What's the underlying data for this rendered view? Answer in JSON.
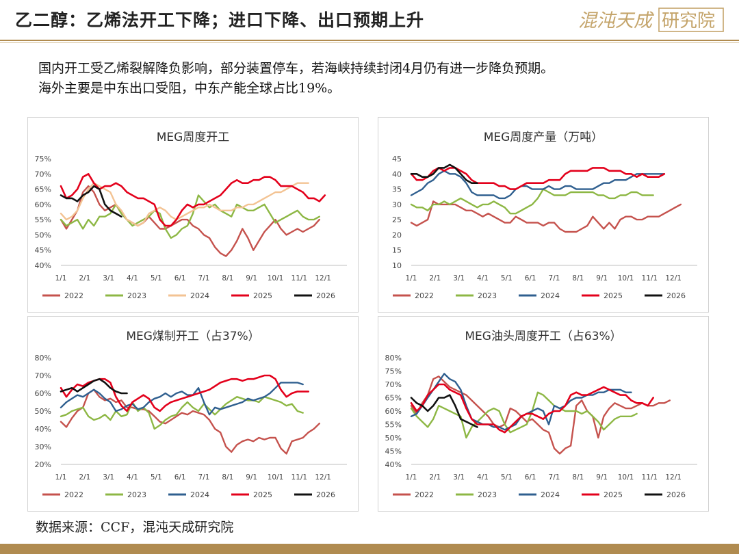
{
  "header": {
    "title": "乙二醇：乙烯法开工下降；进口下降、出口预期上升",
    "logo_text": "混沌天成研究院",
    "logo_part1": "混沌天成",
    "logo_part2": "研究院"
  },
  "intro": {
    "line1": "国内开工受乙烯裂解降负影响，部分装置停车，若海峡持续封闭4月仍有进一步降负预期。",
    "line2": "海外主要是中东出口受阻，中东产能全球占比19%。"
  },
  "source": "数据来源：CCF，混沌天成研究院",
  "colors": {
    "accent": "#b08b50",
    "2022": "#c5524d",
    "2023": "#8db744",
    "2024_peach": "#f3c393",
    "2024_blue": "#2f5f8f",
    "2025": "#e3001b",
    "2026": "#111111"
  },
  "chart_data": [
    {
      "type": "line",
      "title": "MEG周度开工",
      "ylim": [
        40,
        75
      ],
      "yticks": [
        40,
        45,
        50,
        55,
        60,
        65,
        70,
        75
      ],
      "yfmt": "%",
      "x_labels": [
        "1/1",
        "2/1",
        "3/1",
        "4/1",
        "5/1",
        "6/1",
        "7/1",
        "8/1",
        "9/1",
        "10/1",
        "11/1",
        "12/1"
      ],
      "series": [
        {
          "name": "2022",
          "color": "#c5524d",
          "values": [
            55,
            52,
            55,
            58,
            64,
            66,
            64,
            60,
            58,
            59,
            60,
            57,
            55,
            54,
            53,
            54,
            56,
            54,
            52,
            52,
            53,
            54,
            55,
            55,
            53,
            52,
            50,
            49,
            46,
            44,
            43,
            45,
            48,
            52,
            49,
            45,
            48,
            51,
            53,
            55,
            52,
            50,
            51,
            52,
            51,
            52,
            53,
            55
          ]
        },
        {
          "name": "2023",
          "color": "#8db744",
          "values": [
            55,
            53,
            54,
            55,
            52,
            55,
            53,
            56,
            56,
            57,
            60,
            57,
            55,
            53,
            54,
            55,
            56,
            58,
            57,
            52,
            49,
            50,
            52,
            53,
            57,
            63,
            61,
            59,
            60,
            58,
            57,
            56,
            60,
            59,
            58,
            58,
            59,
            60,
            57,
            54,
            55,
            56,
            57,
            58,
            56,
            55,
            55,
            56
          ]
        },
        {
          "name": "2024",
          "color": "#f3c393",
          "values": [
            57,
            55,
            56,
            58,
            62,
            65,
            67,
            66,
            65,
            64,
            60,
            58,
            55,
            54,
            53,
            54,
            57,
            58,
            59,
            58,
            56,
            55,
            56,
            57,
            58,
            59,
            59,
            60,
            59,
            58,
            58,
            58,
            59,
            59,
            60,
            60,
            61,
            62,
            63,
            64,
            64,
            65,
            66,
            67,
            67,
            67
          ]
        },
        {
          "name": "2025",
          "color": "#e3001b",
          "values": [
            66,
            62,
            63,
            65,
            69,
            70,
            67,
            65,
            66,
            66,
            67,
            66,
            64,
            63,
            62,
            62,
            61,
            60,
            55,
            53,
            53,
            55,
            58,
            60,
            59,
            60,
            60,
            61,
            62,
            63,
            65,
            67,
            68,
            67,
            67,
            68,
            68,
            69,
            69,
            68,
            66,
            66,
            66,
            65,
            64,
            62,
            62,
            61,
            63
          ]
        },
        {
          "name": "2026",
          "color": "#111111",
          "values": [
            63,
            62,
            62,
            61,
            63,
            64,
            66,
            65,
            60,
            58,
            57,
            56
          ]
        }
      ]
    },
    {
      "type": "line",
      "title": "MEG周度产量（万吨）",
      "ylim": [
        10,
        45
      ],
      "yticks": [
        10,
        15,
        20,
        25,
        30,
        35,
        40,
        45
      ],
      "yfmt": "",
      "x_labels": [
        "1/1",
        "2/1",
        "3/1",
        "4/1",
        "5/1",
        "6/1",
        "7/1",
        "8/1",
        "9/1",
        "10/1",
        "11/1",
        "12/1"
      ],
      "series": [
        {
          "name": "2022",
          "color": "#c5524d",
          "values": [
            24,
            23,
            24,
            25,
            31,
            30,
            30,
            30,
            30,
            29,
            28,
            28,
            27,
            26,
            27,
            26,
            25,
            24,
            24,
            26,
            25,
            24,
            24,
            24,
            23,
            24,
            24,
            22,
            21,
            21,
            21,
            22,
            23,
            26,
            24,
            22,
            24,
            22,
            25,
            26,
            26,
            25,
            25,
            26,
            26,
            26,
            27,
            28,
            29,
            30
          ]
        },
        {
          "name": "2023",
          "color": "#8db744",
          "values": [
            30,
            29,
            29,
            28,
            30,
            30,
            31,
            30,
            31,
            32,
            31,
            30,
            29,
            30,
            30,
            31,
            30,
            29,
            27,
            27,
            28,
            29,
            30,
            32,
            35,
            34,
            33,
            33,
            33,
            34,
            34,
            34,
            34,
            34,
            33,
            33,
            32,
            32,
            33,
            33,
            34,
            34,
            33,
            33,
            33
          ]
        },
        {
          "name": "2024",
          "color": "#2f5f8f",
          "values": [
            33,
            34,
            35,
            37,
            38,
            40,
            41,
            40,
            40,
            39,
            37,
            34,
            33,
            33,
            33,
            33,
            32,
            32,
            33,
            35,
            36,
            36,
            35,
            35,
            35,
            36,
            35,
            35,
            36,
            36,
            35,
            35,
            35,
            35,
            36,
            37,
            37,
            38,
            38,
            38,
            39,
            40,
            40,
            40,
            40,
            40,
            40
          ]
        },
        {
          "name": "2025",
          "color": "#e3001b",
          "values": [
            40,
            38,
            38,
            39,
            41,
            42,
            41,
            42,
            42,
            41,
            40,
            38,
            37,
            37,
            37,
            37,
            36,
            36,
            35,
            35,
            36,
            37,
            37,
            37,
            37,
            38,
            38,
            38,
            40,
            41,
            41,
            41,
            41,
            42,
            42,
            42,
            41,
            41,
            41,
            40,
            40,
            39,
            40,
            39,
            39,
            39,
            40
          ]
        },
        {
          "name": "2026",
          "color": "#111111",
          "values": [
            40,
            40,
            39,
            39,
            40,
            42,
            42,
            43,
            42,
            40,
            38,
            37,
            37
          ]
        }
      ]
    },
    {
      "type": "line",
      "title": "MEG煤制开工（占37%）",
      "ylim": [
        20,
        80
      ],
      "yticks": [
        20,
        30,
        40,
        50,
        60,
        70,
        80
      ],
      "yfmt": "%",
      "x_labels": [
        "1/1",
        "2/1",
        "3/1",
        "4/1",
        "5/1",
        "6/1",
        "7/1",
        "8/1",
        "9/1",
        "10/1",
        "11/1",
        "12/1"
      ],
      "series": [
        {
          "name": "2022",
          "color": "#c5524d",
          "values": [
            44,
            41,
            46,
            50,
            52,
            60,
            62,
            58,
            56,
            57,
            55,
            56,
            52,
            52,
            51,
            51,
            50,
            47,
            44,
            43,
            45,
            47,
            49,
            48,
            50,
            49,
            48,
            45,
            40,
            38,
            30,
            27,
            31,
            33,
            34,
            33,
            35,
            34,
            35,
            35,
            29,
            26,
            33,
            34,
            35,
            38,
            40,
            43
          ]
        },
        {
          "name": "2023",
          "color": "#8db744",
          "values": [
            47,
            48,
            50,
            51,
            52,
            47,
            45,
            46,
            48,
            45,
            50,
            47,
            48,
            55,
            50,
            52,
            49,
            40,
            42,
            45,
            47,
            48,
            52,
            55,
            52,
            50,
            54,
            51,
            48,
            51,
            54,
            56,
            58,
            57,
            56,
            56,
            55,
            58,
            57,
            56,
            55,
            53,
            54,
            50,
            49
          ]
        },
        {
          "name": "2024",
          "color": "#2f5f8f",
          "values": [
            52,
            55,
            57,
            59,
            58,
            60,
            62,
            60,
            57,
            55,
            50,
            51,
            53,
            54,
            51,
            52,
            55,
            57,
            58,
            60,
            58,
            60,
            61,
            59,
            59,
            63,
            55,
            48,
            52,
            51,
            52,
            53,
            54,
            55,
            57,
            56,
            57,
            58,
            60,
            63,
            66,
            66,
            66,
            66,
            65
          ]
        },
        {
          "name": "2025",
          "color": "#e3001b",
          "values": [
            63,
            58,
            62,
            65,
            64,
            66,
            67,
            68,
            68,
            66,
            58,
            53,
            50,
            55,
            57,
            59,
            57,
            52,
            50,
            53,
            55,
            56,
            57,
            58,
            59,
            60,
            61,
            62,
            64,
            66,
            67,
            68,
            68,
            67,
            68,
            68,
            69,
            70,
            70,
            68,
            62,
            58,
            60,
            61,
            61,
            61
          ]
        },
        {
          "name": "2026",
          "color": "#111111",
          "values": [
            61,
            62,
            63,
            61,
            63,
            65,
            67,
            68,
            66,
            63,
            61,
            60,
            60
          ]
        }
      ]
    },
    {
      "type": "line",
      "title": "MEG油头周度开工（占63%）",
      "ylim": [
        40,
        80
      ],
      "yticks": [
        40,
        45,
        50,
        55,
        60,
        65,
        70,
        75,
        80
      ],
      "yfmt": "%",
      "x_labels": [
        "1/1",
        "2/1",
        "3/1",
        "4/1",
        "5/1",
        "6/1",
        "7/1",
        "8/1",
        "9/1",
        "10/1",
        "11/1",
        "12/1"
      ],
      "series": [
        {
          "name": "2022",
          "color": "#c5524d",
          "values": [
            62,
            59,
            63,
            66,
            72,
            73,
            71,
            69,
            68,
            67,
            66,
            64,
            62,
            60,
            58,
            55,
            54,
            55,
            61,
            60,
            58,
            56,
            57,
            55,
            53,
            52,
            46,
            44,
            46,
            47,
            62,
            64,
            60,
            58,
            50,
            58,
            61,
            63,
            62,
            61,
            61,
            62,
            63,
            62,
            62,
            63,
            63,
            64
          ]
        },
        {
          "name": "2023",
          "color": "#8db744",
          "values": [
            61,
            58,
            56,
            54,
            57,
            62,
            61,
            60,
            59,
            58,
            50,
            54,
            56,
            58,
            60,
            61,
            60,
            55,
            52,
            53,
            54,
            55,
            60,
            67,
            66,
            64,
            62,
            61,
            60,
            60,
            60,
            59,
            60,
            58,
            56,
            53,
            55,
            57,
            58,
            58,
            58,
            59
          ]
        },
        {
          "name": "2024",
          "color": "#2f5f8f",
          "values": [
            58,
            59,
            62,
            65,
            68,
            71,
            74,
            72,
            71,
            68,
            62,
            57,
            56,
            55,
            55,
            54,
            54,
            53,
            54,
            55,
            58,
            59,
            60,
            61,
            60,
            55,
            62,
            61,
            62,
            64,
            65,
            65,
            66,
            66,
            67,
            67,
            68,
            68,
            68,
            67,
            67
          ]
        },
        {
          "name": "2025",
          "color": "#e3001b",
          "values": [
            63,
            60,
            62,
            66,
            68,
            70,
            70,
            68,
            67,
            66,
            61,
            57,
            55,
            55,
            55,
            55,
            53,
            52,
            54,
            56,
            58,
            59,
            59,
            58,
            57,
            59,
            60,
            60,
            62,
            66,
            67,
            66,
            66,
            67,
            68,
            69,
            68,
            67,
            66,
            66,
            64,
            63,
            63,
            62,
            65
          ]
        },
        {
          "name": "2026",
          "color": "#111111",
          "values": [
            65,
            63,
            62,
            60,
            62,
            65,
            65,
            66,
            62,
            57,
            56,
            55,
            54
          ]
        }
      ]
    }
  ]
}
